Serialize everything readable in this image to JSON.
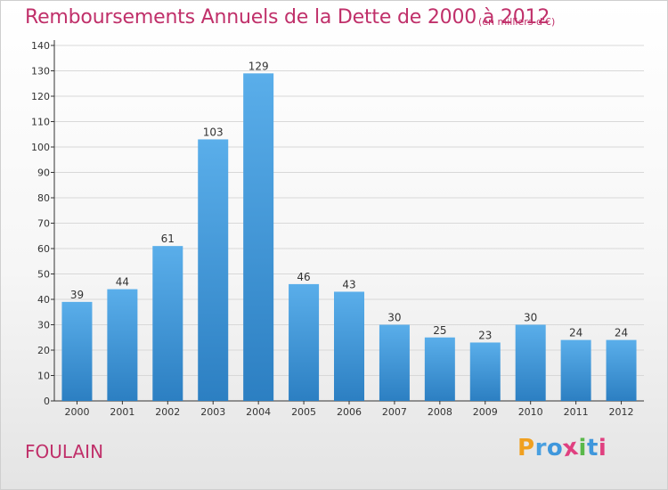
{
  "chart_data": {
    "type": "bar",
    "title": "Remboursements Annuels de la Dette de 2000 à 2012",
    "subtitle": "(en milliers d'€)",
    "categories": [
      "2000",
      "2001",
      "2002",
      "2003",
      "2004",
      "2005",
      "2006",
      "2007",
      "2008",
      "2009",
      "2010",
      "2011",
      "2012"
    ],
    "values": [
      39,
      44,
      61,
      103,
      129,
      46,
      43,
      30,
      25,
      23,
      30,
      24,
      24
    ],
    "ylim": [
      0,
      140
    ],
    "yticks": [
      0,
      10,
      20,
      30,
      40,
      50,
      60,
      70,
      80,
      90,
      100,
      110,
      120,
      130,
      140
    ],
    "grid": true,
    "legend": "none",
    "bar_color": "#3f97dc"
  },
  "place_name": "FOULAIN",
  "logo": {
    "text": "Proxiti",
    "letters": [
      {
        "ch": "P",
        "color": "#f0a020"
      },
      {
        "ch": "r",
        "color": "#4aa0e0"
      },
      {
        "ch": "o",
        "color": "#3f97dc"
      },
      {
        "ch": "x",
        "color": "#e04080"
      },
      {
        "ch": "i",
        "color": "#5ab84a"
      },
      {
        "ch": "t",
        "color": "#3f97dc"
      },
      {
        "ch": "i",
        "color": "#e04080"
      }
    ]
  },
  "colors": {
    "accent": "#c0306a",
    "axis": "#333333",
    "grid": "#d8d8d8"
  }
}
